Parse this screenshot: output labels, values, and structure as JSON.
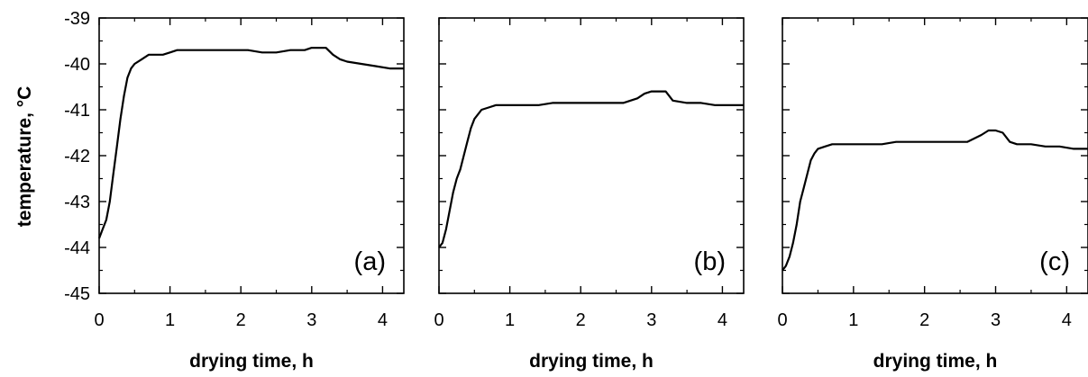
{
  "chart_data": [
    {
      "type": "line",
      "panel_label": "(a)",
      "xlabel": "drying time, h",
      "ylabel": "temperature, °C",
      "xlim": [
        0,
        4.3
      ],
      "ylim": [
        -45,
        -39
      ],
      "xticks": [
        0,
        1,
        2,
        3,
        4
      ],
      "yticks": [
        -45,
        -44,
        -43,
        -42,
        -41,
        -40,
        -39
      ],
      "x_tick_labels": [
        "0",
        "1",
        "2",
        "3",
        "4"
      ],
      "y_tick_labels": [
        "-45",
        "-44",
        "-43",
        "-42",
        "-41",
        "-40",
        "-39"
      ],
      "grid": false,
      "series": [
        {
          "color": "#000000",
          "x": [
            0,
            0.05,
            0.1,
            0.15,
            0.2,
            0.25,
            0.3,
            0.35,
            0.4,
            0.45,
            0.5,
            0.6,
            0.7,
            0.8,
            0.9,
            1.0,
            1.1,
            1.3,
            1.5,
            1.7,
            1.9,
            2.1,
            2.3,
            2.5,
            2.7,
            2.9,
            3.0,
            3.1,
            3.2,
            3.3,
            3.4,
            3.5,
            3.7,
            3.9,
            4.1,
            4.3
          ],
          "y": [
            -43.8,
            -43.6,
            -43.4,
            -43.0,
            -42.4,
            -41.8,
            -41.2,
            -40.7,
            -40.3,
            -40.1,
            -40.0,
            -39.9,
            -39.8,
            -39.8,
            -39.8,
            -39.75,
            -39.7,
            -39.7,
            -39.7,
            -39.7,
            -39.7,
            -39.7,
            -39.75,
            -39.75,
            -39.7,
            -39.7,
            -39.65,
            -39.65,
            -39.65,
            -39.8,
            -39.9,
            -39.95,
            -40.0,
            -40.05,
            -40.1,
            -40.1
          ]
        }
      ]
    },
    {
      "type": "line",
      "panel_label": "(b)",
      "xlabel": "drying time, h",
      "xlim": [
        0,
        4.3
      ],
      "ylim": [
        -45,
        -39
      ],
      "xticks": [
        0,
        1,
        2,
        3,
        4
      ],
      "yticks": [
        -45,
        -44,
        -43,
        -42,
        -41,
        -40,
        -39
      ],
      "x_tick_labels": [
        "0",
        "1",
        "2",
        "3",
        "4"
      ],
      "grid": false,
      "series": [
        {
          "color": "#000000",
          "x": [
            0,
            0.05,
            0.1,
            0.15,
            0.2,
            0.25,
            0.3,
            0.35,
            0.4,
            0.45,
            0.5,
            0.6,
            0.7,
            0.8,
            0.9,
            1.0,
            1.2,
            1.4,
            1.6,
            1.8,
            2.0,
            2.2,
            2.4,
            2.6,
            2.8,
            2.9,
            3.0,
            3.1,
            3.2,
            3.3,
            3.5,
            3.7,
            3.9,
            4.1,
            4.3
          ],
          "y": [
            -44.0,
            -43.9,
            -43.6,
            -43.2,
            -42.8,
            -42.5,
            -42.3,
            -42.0,
            -41.7,
            -41.4,
            -41.2,
            -41.0,
            -40.95,
            -40.9,
            -40.9,
            -40.9,
            -40.9,
            -40.9,
            -40.85,
            -40.85,
            -40.85,
            -40.85,
            -40.85,
            -40.85,
            -40.75,
            -40.65,
            -40.6,
            -40.6,
            -40.6,
            -40.8,
            -40.85,
            -40.85,
            -40.9,
            -40.9,
            -40.9
          ]
        }
      ]
    },
    {
      "type": "line",
      "panel_label": "(c)",
      "xlabel": "drying time, h",
      "xlim": [
        0,
        4.3
      ],
      "ylim": [
        -45,
        -39
      ],
      "xticks": [
        0,
        1,
        2,
        3,
        4
      ],
      "yticks": [
        -45,
        -44,
        -43,
        -42,
        -41,
        -40,
        -39
      ],
      "x_tick_labels": [
        "0",
        "1",
        "2",
        "3",
        "4"
      ],
      "grid": false,
      "series": [
        {
          "color": "#000000",
          "x": [
            0,
            0.05,
            0.1,
            0.15,
            0.2,
            0.25,
            0.3,
            0.35,
            0.4,
            0.45,
            0.5,
            0.6,
            0.7,
            0.8,
            0.9,
            1.0,
            1.2,
            1.4,
            1.6,
            1.8,
            2.0,
            2.2,
            2.4,
            2.6,
            2.8,
            2.9,
            3.0,
            3.1,
            3.2,
            3.3,
            3.5,
            3.7,
            3.9,
            4.1,
            4.3
          ],
          "y": [
            -44.5,
            -44.4,
            -44.2,
            -43.9,
            -43.5,
            -43.0,
            -42.7,
            -42.4,
            -42.1,
            -41.95,
            -41.85,
            -41.8,
            -41.75,
            -41.75,
            -41.75,
            -41.75,
            -41.75,
            -41.75,
            -41.7,
            -41.7,
            -41.7,
            -41.7,
            -41.7,
            -41.7,
            -41.55,
            -41.45,
            -41.45,
            -41.5,
            -41.7,
            -41.75,
            -41.75,
            -41.8,
            -41.8,
            -41.85,
            -41.85
          ]
        }
      ]
    }
  ]
}
